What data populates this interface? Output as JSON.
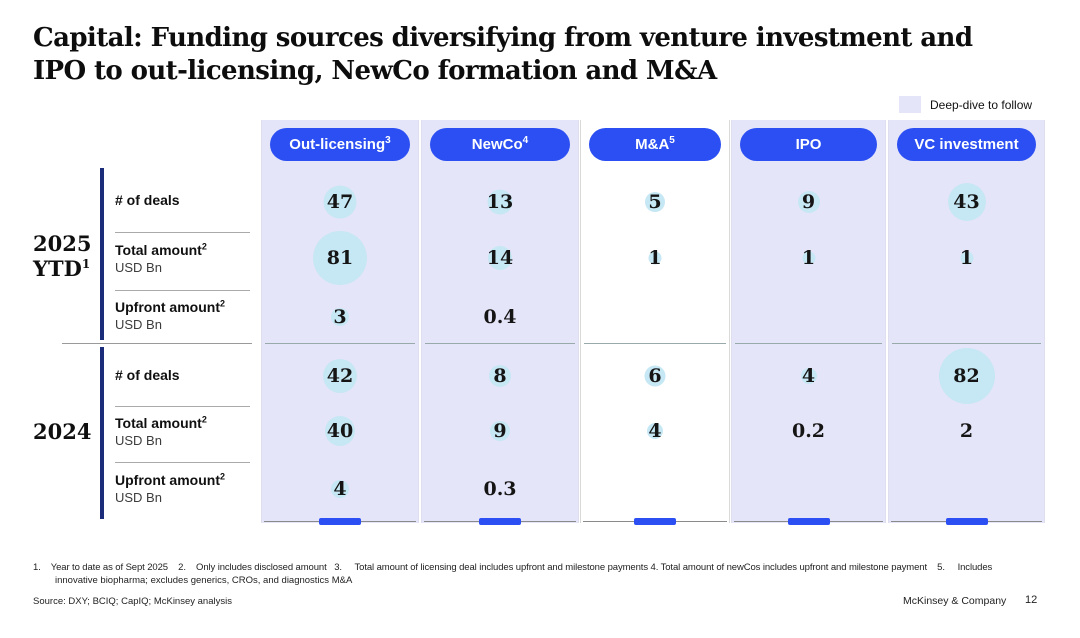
{
  "title": {
    "line1": "Capital: Funding sources diversifying from venture investment and",
    "line2": "IPO to out-licensing, NewCo formation and M&A"
  },
  "legend": {
    "label": "Deep-dive to follow",
    "swatch_color": "#e5e5f9"
  },
  "colors": {
    "accent_blue": "#2b4ff2",
    "highlight_lavender": "#e5e5f9",
    "bubble_blue": "#c6e7f4",
    "navy_bar": "#1b2d7a"
  },
  "row_groups": [
    {
      "year": "2025",
      "year_line2": "YTD",
      "year_sup": "1"
    },
    {
      "year": "2024",
      "year_line2": "",
      "year_sup": ""
    }
  ],
  "row_labels": [
    {
      "label": "# of deals",
      "sup": "",
      "unit": ""
    },
    {
      "label": "Total amount",
      "sup": "2",
      "unit": "USD Bn"
    },
    {
      "label": "Upfront amount",
      "sup": "2",
      "unit": "USD Bn"
    }
  ],
  "columns": [
    {
      "id": "out-licensing",
      "label": "Out-licensing",
      "sup": "3",
      "highlighted": true,
      "cells": [
        {
          "value": "47",
          "bubble": 33
        },
        {
          "value": "81",
          "bubble": 54
        },
        {
          "value": "3",
          "bubble": 18
        },
        {
          "value": "42",
          "bubble": 34
        },
        {
          "value": "40",
          "bubble": 30
        },
        {
          "value": "4",
          "bubble": 18
        }
      ]
    },
    {
      "id": "newco",
      "label": "NewCo",
      "sup": "4",
      "highlighted": true,
      "cells": [
        {
          "value": "13",
          "bubble": 25
        },
        {
          "value": "14",
          "bubble": 24
        },
        {
          "value": "0.4",
          "bubble": 0
        },
        {
          "value": "8",
          "bubble": 22
        },
        {
          "value": "9",
          "bubble": 20
        },
        {
          "value": "0.3",
          "bubble": 0
        }
      ]
    },
    {
      "id": "ma",
      "label": "M&A",
      "sup": "5",
      "highlighted": false,
      "cells": [
        {
          "value": "5",
          "bubble": 20
        },
        {
          "value": "1",
          "bubble": 13
        },
        {
          "value": "",
          "bubble": 0
        },
        {
          "value": "6",
          "bubble": 21
        },
        {
          "value": "4",
          "bubble": 16
        },
        {
          "value": "",
          "bubble": 0
        }
      ]
    },
    {
      "id": "ipo",
      "label": "IPO",
      "sup": "",
      "highlighted": true,
      "cells": [
        {
          "value": "9",
          "bubble": 22
        },
        {
          "value": "1",
          "bubble": 13
        },
        {
          "value": "",
          "bubble": 0
        },
        {
          "value": "4",
          "bubble": 16
        },
        {
          "value": "0.2",
          "bubble": 0
        },
        {
          "value": "",
          "bubble": 0
        }
      ]
    },
    {
      "id": "vc-investment",
      "label": "VC investment",
      "sup": "",
      "highlighted": true,
      "cells": [
        {
          "value": "43",
          "bubble": 38
        },
        {
          "value": "1",
          "bubble": 13
        },
        {
          "value": "",
          "bubble": 0
        },
        {
          "value": "82",
          "bubble": 56
        },
        {
          "value": "2",
          "bubble": 0
        },
        {
          "value": "",
          "bubble": 0
        }
      ]
    }
  ],
  "chart_data": {
    "type": "table",
    "title": "Capital: Funding sources diversifying from venture investment and IPO to out-licensing, NewCo formation and M&A",
    "columns": [
      "Out-licensing",
      "NewCo",
      "M&A",
      "IPO",
      "VC investment"
    ],
    "row_groups": [
      {
        "group": "2025 YTD",
        "rows": [
          {
            "metric": "# of deals",
            "values": [
              47,
              13,
              5,
              9,
              43
            ]
          },
          {
            "metric": "Total amount (USD Bn)",
            "values": [
              81,
              14,
              1,
              1,
              1
            ]
          },
          {
            "metric": "Upfront amount (USD Bn)",
            "values": [
              3,
              0.4,
              null,
              null,
              null
            ]
          }
        ]
      },
      {
        "group": "2024",
        "rows": [
          {
            "metric": "# of deals",
            "values": [
              42,
              8,
              6,
              4,
              82
            ]
          },
          {
            "metric": "Total amount (USD Bn)",
            "values": [
              40,
              9,
              4,
              0.2,
              2
            ]
          },
          {
            "metric": "Upfront amount (USD Bn)",
            "values": [
              4,
              0.3,
              null,
              null,
              null
            ]
          }
        ]
      }
    ],
    "legend_note": "Deep-dive to follow (lavender-highlighted columns: Out-licensing, NewCo, IPO, VC investment)"
  },
  "footnotes": {
    "line1": "1.    Year to date as of Sept 2025    2.    Only includes disclosed amount   3.     Total amount of licensing deal includes upfront and milestone payments 4. Total amount of newCos includes upfront and milestone payment    5.     Includes",
    "line2": "innovative biopharma; excludes generics, CROs, and diagnostics M&A"
  },
  "source": "Source: DXY; BCIQ; CapIQ; McKinsey analysis",
  "footer": {
    "brand": "McKinsey & Company",
    "page": "12"
  }
}
